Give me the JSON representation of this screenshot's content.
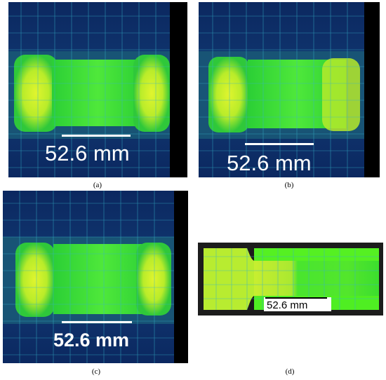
{
  "panels": [
    {
      "id": "a",
      "caption": "(a)",
      "scale_label": "52.6 mm"
    },
    {
      "id": "b",
      "caption": "(b)",
      "scale_label": "52.6 mm"
    },
    {
      "id": "c",
      "caption": "(c)",
      "scale_label": "52.6 mm"
    },
    {
      "id": "d",
      "caption": "(d)",
      "scale_label": "52.6 mm"
    }
  ],
  "colors": {
    "background": "#000000",
    "dark_blue": "#0d2a66",
    "teal": "#1c5f7a",
    "green": "#2fd23a",
    "bright_green": "#55ff22",
    "yellow": "#d8f02a",
    "grid": "#36b4c9",
    "scale_bar": "#ffffff"
  }
}
